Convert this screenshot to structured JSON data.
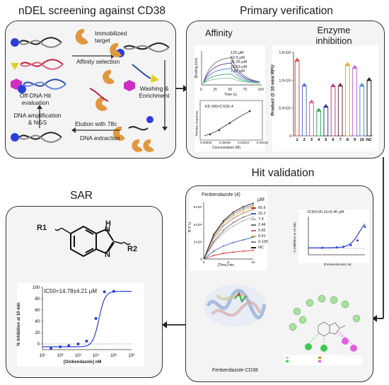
{
  "panels": {
    "ndel": {
      "title": "nDEL screening against CD38",
      "immobilized": "Immobilized target",
      "affinity_selection": "Affinity selection",
      "washing": "Washing & Enrichment",
      "elution": "Elution with 78c",
      "extraction": "DNA extraction",
      "amplification": "DNA amplification & NGS",
      "offdna": "Off-DNA Hit evaluation"
    },
    "primary": {
      "title": "Primary verification",
      "affinity": "Affinity",
      "enzyme": "Enzyme inhibition",
      "sensor_legend": [
        "125 μM",
        "62.5 μM",
        "31.25 μM",
        "15.63 μM",
        "7.81 μM"
      ],
      "sensor_ylabel": "Binding (nm)",
      "sensor_xlabel": "Time (s)",
      "sensor_xticks": [
        "0",
        "25",
        "50",
        "75",
        "100"
      ],
      "kd_label": "KD (M)=2.52E-4",
      "kd_xlabel": "Concentration (M)",
      "kd_ylabel": "Relative response",
      "kd_xticks": [
        "0.00000",
        "0.00005",
        "0.00010",
        "0.00015"
      ],
      "bar_ylabel": "Product @ 10 min/ RFU",
      "bar_yticks": [
        "0",
        "5.0×10⁴",
        "1.0×10⁵",
        "1.5×10⁵"
      ]
    },
    "hit": {
      "title": "Hit validation",
      "fen_title": "Fenbendazole (4)",
      "unit": "μM",
      "legend": [
        "66.6",
        "22.2",
        "7.4",
        "2.46",
        "0.82",
        "0.41",
        "0.136",
        "NC"
      ],
      "rfu": "R F U",
      "time_label": "[Time] min",
      "kin_xticks": [
        "0",
        "5",
        "10"
      ],
      "kin_yticks": [
        "0",
        "2×10⁴",
        "4×10⁴",
        "6×10⁴"
      ],
      "ic50": "IC50=26.31±3.40 μM",
      "ic50_ylabel": "% inhibition at 10 min",
      "ic50_xlabel": "[Fenbendazole] nM",
      "complex_label": "Fenbendazole-CD38"
    },
    "sar": {
      "title": "SAR",
      "r1": "R1",
      "r2": "R2",
      "nh": "H",
      "n": "N",
      "ic50": "IC50=14.78±4.21 μM",
      "ylabel": "% inhibition at 10 min",
      "xlabel": "[Oxibendazole] nM",
      "yticks": [
        "0",
        "20",
        "40",
        "60",
        "80",
        "100"
      ],
      "xticks": [
        "10¹",
        "10²",
        "10³",
        "10⁴",
        "10⁵",
        "10⁶"
      ]
    }
  },
  "chart_data": [
    {
      "type": "bar",
      "title": "Enzyme inhibition",
      "ylabel": "Product @ 10 min/ RFU",
      "categories": [
        "1",
        "2",
        "3",
        "4",
        "5",
        "6",
        "7",
        "8",
        "9",
        "10",
        "NC"
      ],
      "values": [
        135000,
        90000,
        60000,
        45000,
        52000,
        89000,
        90000,
        127000,
        122000,
        90000,
        100000
      ],
      "colors": [
        "#e04848",
        "#5a6fd8",
        "#e85a9a",
        "#3aa85a",
        "#2c3a8a",
        "#c03a8a",
        "#7a2a3a",
        "#f0a020",
        "#b06ad0",
        "#4a8ae0",
        "#222222"
      ],
      "ylim": [
        0,
        150000
      ]
    },
    {
      "type": "line",
      "title": "Fenbendazole (4)",
      "xlabel": "[Time] min",
      "ylabel": "R F U",
      "x": [
        0,
        2,
        4,
        6,
        8,
        10
      ],
      "series": [
        {
          "name": "66.6",
          "values": [
            0,
            4000,
            6500,
            8000,
            9000,
            10000
          ]
        },
        {
          "name": "22.2",
          "values": [
            0,
            9000,
            15000,
            19000,
            22000,
            25000
          ]
        },
        {
          "name": "7.4",
          "values": [
            0,
            18000,
            30000,
            38000,
            44000,
            48000
          ]
        },
        {
          "name": "2.46",
          "values": [
            0,
            20000,
            33000,
            42000,
            48000,
            52000
          ]
        },
        {
          "name": "0.82",
          "values": [
            0,
            24000,
            38000,
            47000,
            53000,
            57000
          ]
        },
        {
          "name": "0.41",
          "values": [
            0,
            26000,
            41000,
            50000,
            56000,
            60000
          ]
        },
        {
          "name": "0.136",
          "values": [
            0,
            27000,
            43000,
            52000,
            58000,
            62000
          ]
        },
        {
          "name": "NC",
          "values": [
            0,
            28000,
            44000,
            54000,
            60000,
            64000
          ]
        }
      ],
      "series_colors": [
        "#d23030",
        "#3c5ec8",
        "#b0b0b0",
        "#6a6a6a",
        "#c07060",
        "#c8b040",
        "#8080a0",
        "#222222"
      ],
      "ylim": [
        0,
        65000
      ]
    },
    {
      "type": "scatter",
      "title": "",
      "xlabel": "[Fenbendazole] nM",
      "ylabel": "% inhibition at 10 min",
      "x": [
        100,
        1000,
        3000,
        10000,
        30000,
        100000
      ],
      "values": [
        2,
        3,
        5,
        10,
        25,
        68
      ],
      "ylim": [
        -20,
        100
      ]
    },
    {
      "type": "scatter",
      "title": "",
      "xlabel": "[Oxibendazole] nM",
      "ylabel": "% inhibition at 10 min",
      "x": [
        30,
        100,
        300,
        1000,
        3000,
        10000,
        30000,
        100000
      ],
      "values": [
        -8,
        -5,
        -3,
        0,
        5,
        45,
        92,
        93
      ],
      "ylim": [
        -10,
        100
      ]
    }
  ]
}
